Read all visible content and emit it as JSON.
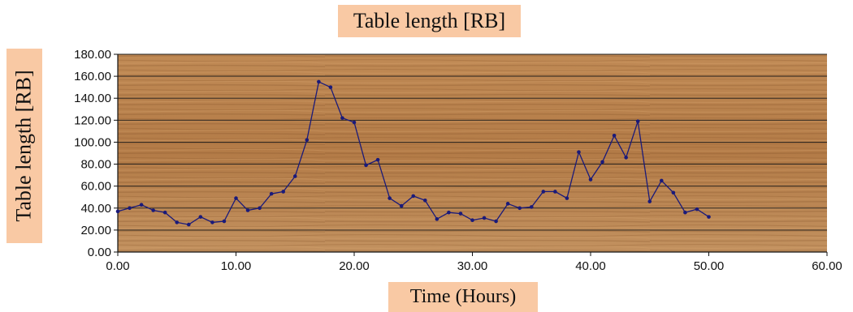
{
  "chart_data": {
    "type": "line",
    "title": "Table length [RB]",
    "xlabel": "Time (Hours)",
    "ylabel": "Table length [RB]",
    "xlim": [
      0,
      60
    ],
    "ylim": [
      0,
      180
    ],
    "x_ticks": [
      "0.00",
      "10.00",
      "20.00",
      "30.00",
      "40.00",
      "50.00",
      "60.00"
    ],
    "y_ticks": [
      "0.00",
      "20.00",
      "40.00",
      "60.00",
      "80.00",
      "100.00",
      "120.00",
      "140.00",
      "160.00",
      "180.00"
    ],
    "grid": true,
    "series": [
      {
        "color": "#1a1a7a",
        "x": [
          0,
          1,
          2,
          3,
          4,
          5,
          6,
          7,
          8,
          9,
          10,
          11,
          12,
          13,
          14,
          15,
          16,
          17,
          18,
          19,
          20,
          21,
          22,
          23,
          24,
          25,
          26,
          27,
          28,
          29,
          30,
          31,
          32,
          33,
          34,
          35,
          36,
          37,
          38,
          39,
          40,
          41,
          42,
          43,
          44,
          45,
          46,
          47,
          48,
          49,
          50
        ],
        "y": [
          37,
          40,
          43,
          38,
          36,
          27,
          25,
          32,
          27,
          28,
          49,
          38,
          40,
          53,
          55,
          69,
          102,
          155,
          150,
          122,
          118,
          79,
          84,
          49,
          42,
          51,
          47,
          30,
          36,
          35,
          29,
          31,
          28,
          44,
          40,
          41,
          55,
          55,
          49,
          91,
          66,
          82,
          106,
          86,
          119,
          46,
          65,
          54,
          36,
          39,
          32
        ]
      }
    ]
  }
}
